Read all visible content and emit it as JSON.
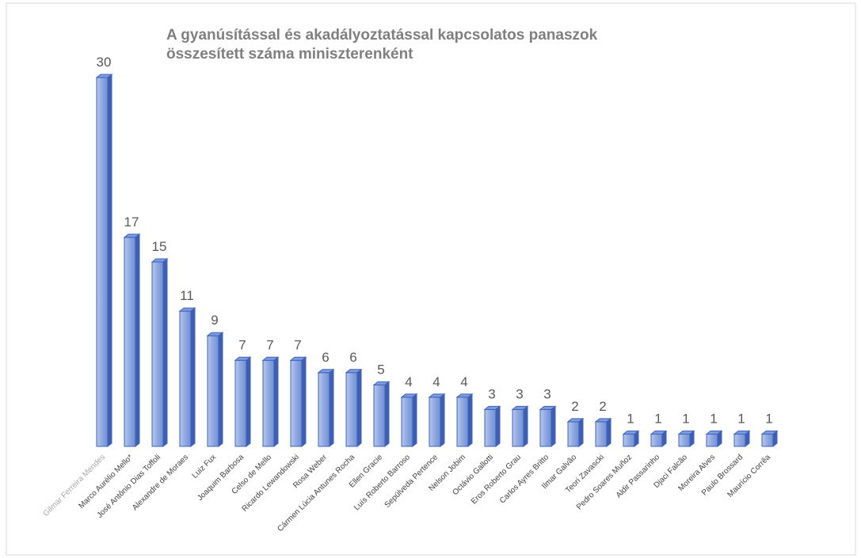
{
  "chart_data": {
    "type": "bar3d",
    "title": [
      "A gyanúsítással és akadályoztatással kapcsolatos panaszok",
      "összesített száma miniszterenként"
    ],
    "categories": [
      "Gilmar Ferreira Mendes",
      "Marco Aurélio Mello*",
      "José Antônio Dias Toffoli",
      "Alexandre de Moraes",
      "Luiz Fux",
      "Joaquim Barbosa",
      "Celso de Mello",
      "Ricardo Lewandowski",
      "Rosa Weber",
      "Cármen Lúcia Antunes Rocha",
      "Ellen Gracie",
      "Luís Roberto Barroso",
      "Sepúlveda Pertence",
      "Nelson Jobim",
      "Octávio Gallotti",
      "Eros Roberto Grau",
      "Carlos Ayres Britto",
      "Ilmar Galvão",
      "Teori Zavascki",
      "Pedro Soares Muñoz",
      "Aldir Passarinho",
      "Djaci Falcão",
      "Moreira Alves",
      "Paulo Brossard",
      "Maurício Corrêa"
    ],
    "values": [
      30,
      17,
      15,
      11,
      9,
      7,
      7,
      7,
      6,
      6,
      5,
      4,
      4,
      4,
      3,
      3,
      3,
      2,
      2,
      1,
      1,
      1,
      1,
      1,
      1
    ],
    "color": "#8fa8e0"
  }
}
